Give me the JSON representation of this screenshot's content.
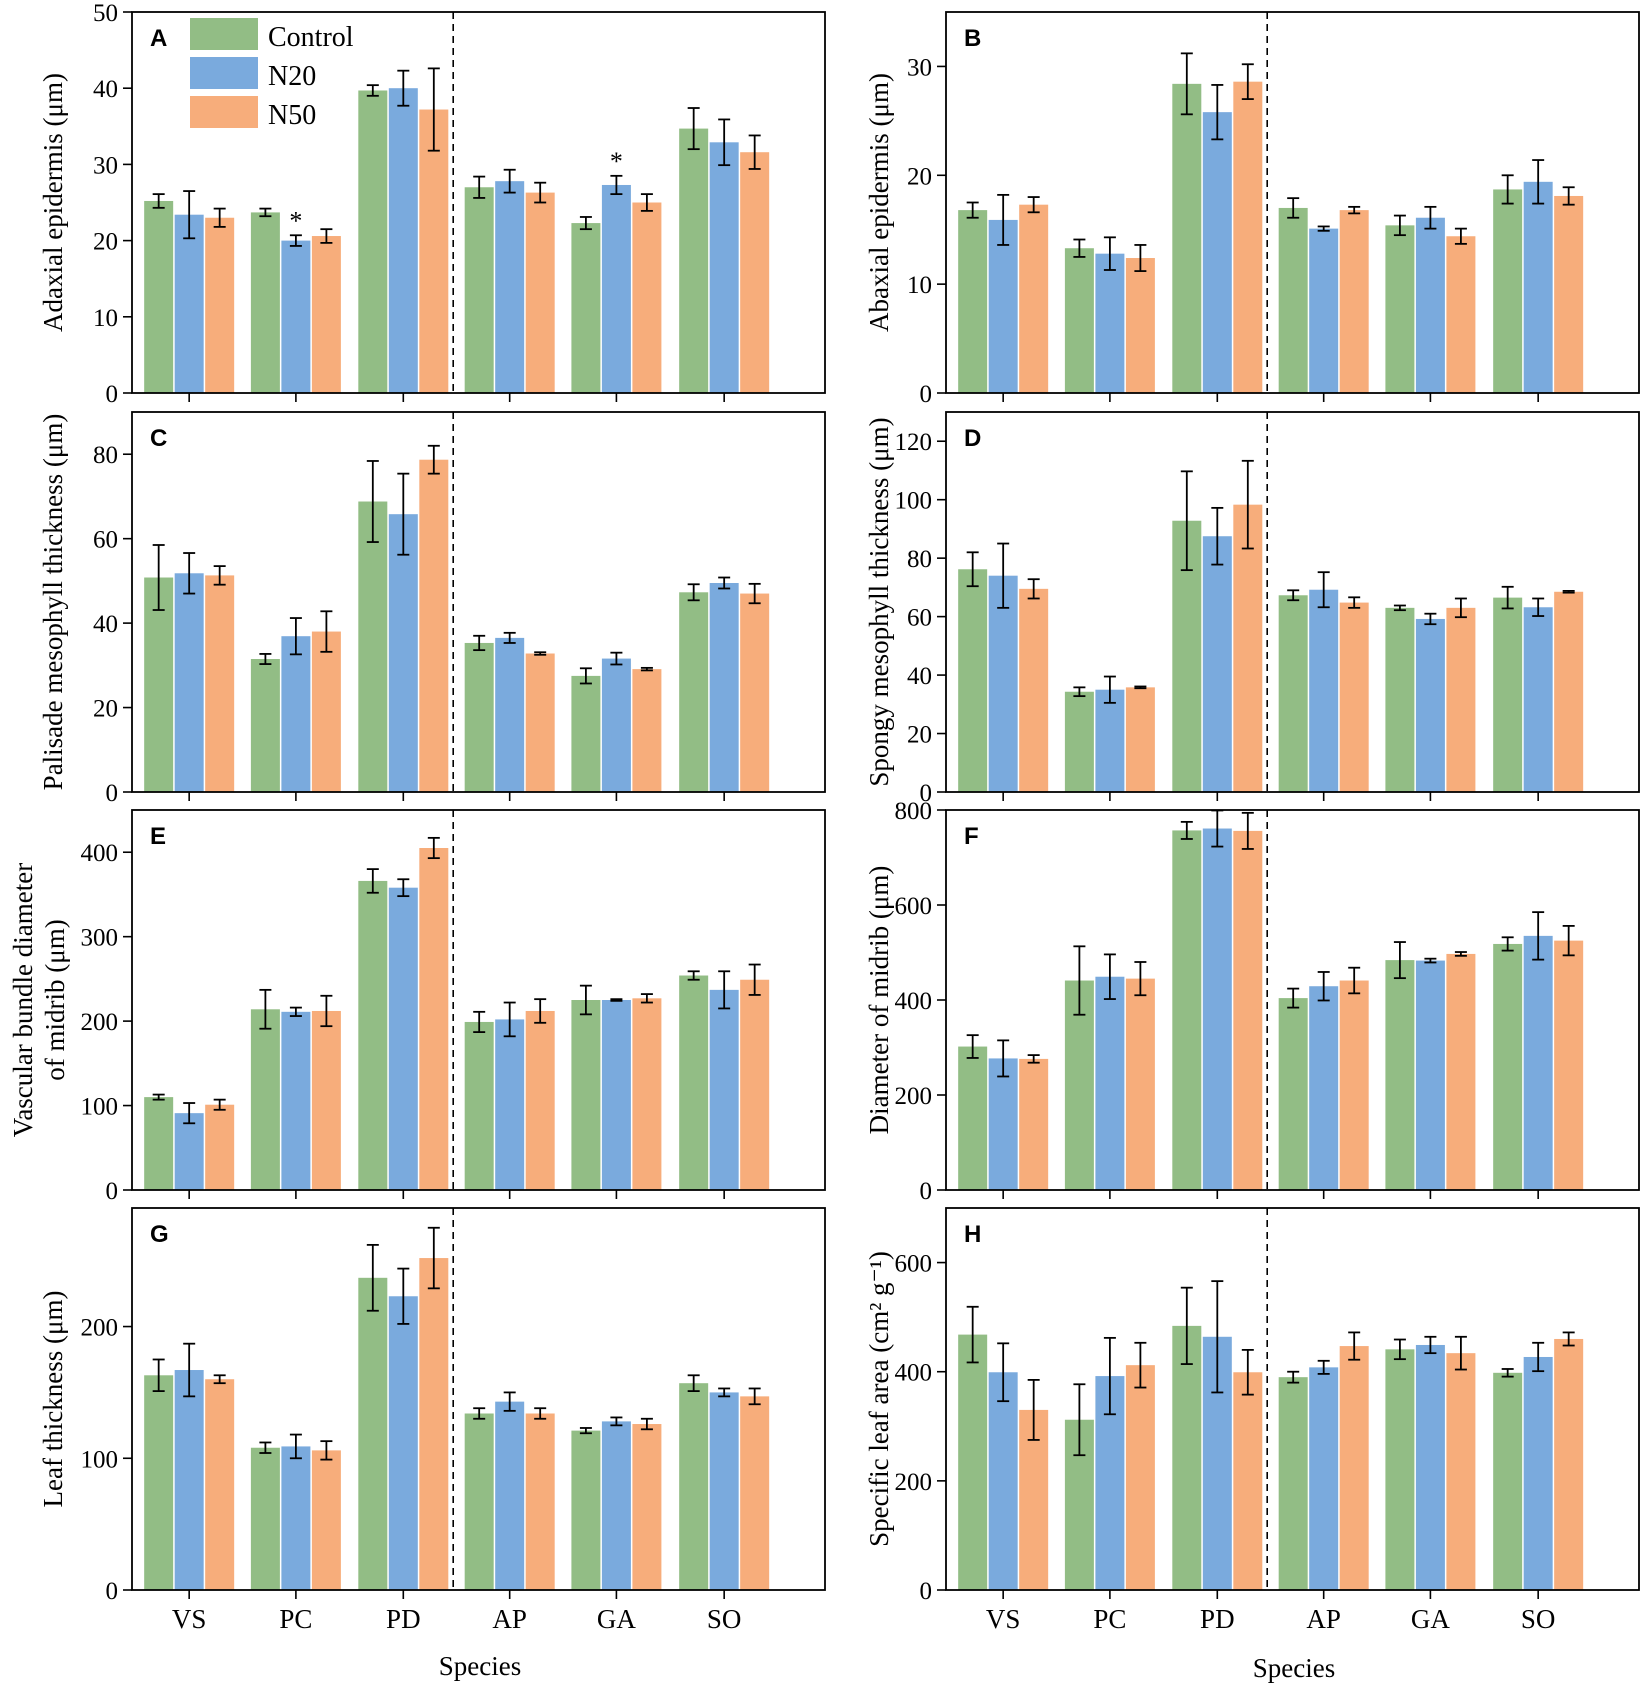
{
  "legend": [
    {
      "name": "Control",
      "color": "#92bd85"
    },
    {
      "name": "N20",
      "color": "#7aaadd"
    },
    {
      "name": "N50",
      "color": "#f7ad7b"
    }
  ],
  "x_axis_title": "Species",
  "chart_data": [
    {
      "type": "bar",
      "panel": "A",
      "ylabel": "Adaxial epidermis (μm)",
      "ylim": [
        0,
        50
      ],
      "yticks": [
        0,
        10,
        20,
        30,
        40,
        50
      ],
      "categories": [
        "VS",
        "PC",
        "PD",
        "AP",
        "GA",
        "SO"
      ],
      "series": [
        {
          "name": "Control",
          "values": [
            25.2,
            23.7,
            39.7,
            27.0,
            22.3,
            34.7
          ],
          "errors": [
            0.9,
            0.5,
            0.7,
            1.4,
            0.8,
            2.7
          ]
        },
        {
          "name": "N20",
          "values": [
            23.4,
            20.0,
            40.0,
            27.8,
            27.3,
            32.9
          ],
          "errors": [
            3.1,
            0.7,
            2.3,
            1.5,
            1.2,
            3.0
          ]
        },
        {
          "name": "N50",
          "values": [
            23.0,
            20.6,
            37.2,
            26.3,
            25.0,
            31.6
          ],
          "errors": [
            1.2,
            0.9,
            5.4,
            1.3,
            1.1,
            2.2
          ]
        }
      ],
      "annotations": [
        {
          "text": "*",
          "category": "PC",
          "series": "N20"
        },
        {
          "text": "*",
          "category": "GA",
          "series": "N20"
        }
      ]
    },
    {
      "type": "bar",
      "panel": "B",
      "ylabel": "Abaxial epidermis (μm)",
      "ylim": [
        0,
        35
      ],
      "yticks": [
        0,
        10,
        20,
        30
      ],
      "categories": [
        "VS",
        "PC",
        "PD",
        "AP",
        "GA",
        "SO"
      ],
      "series": [
        {
          "name": "Control",
          "values": [
            16.8,
            13.3,
            28.4,
            17.0,
            15.4,
            18.7
          ],
          "errors": [
            0.7,
            0.8,
            2.8,
            0.9,
            0.9,
            1.3
          ]
        },
        {
          "name": "N20",
          "values": [
            15.9,
            12.8,
            25.8,
            15.1,
            16.1,
            19.4
          ],
          "errors": [
            2.3,
            1.5,
            2.5,
            0.2,
            1.0,
            2.0
          ]
        },
        {
          "name": "N50",
          "values": [
            17.3,
            12.4,
            28.6,
            16.8,
            14.4,
            18.1
          ],
          "errors": [
            0.7,
            1.2,
            1.6,
            0.3,
            0.7,
            0.8
          ]
        }
      ],
      "annotations": []
    },
    {
      "type": "bar",
      "panel": "C",
      "ylabel": "Palisade mesophyll thickness (μm)",
      "ylim": [
        0,
        90
      ],
      "yticks": [
        0,
        20,
        40,
        60,
        80
      ],
      "categories": [
        "VS",
        "PC",
        "PD",
        "AP",
        "GA",
        "SO"
      ],
      "series": [
        {
          "name": "Control",
          "values": [
            50.8,
            31.5,
            68.8,
            35.3,
            27.5,
            47.3
          ],
          "errors": [
            7.7,
            1.2,
            9.6,
            1.7,
            1.8,
            1.9
          ]
        },
        {
          "name": "N20",
          "values": [
            51.8,
            36.9,
            65.8,
            36.5,
            31.6,
            49.5
          ],
          "errors": [
            4.8,
            4.3,
            9.6,
            1.2,
            1.4,
            1.3
          ]
        },
        {
          "name": "N50",
          "values": [
            51.3,
            38.0,
            78.7,
            32.8,
            29.1,
            47.0
          ],
          "errors": [
            2.2,
            4.8,
            3.3,
            0.3,
            0.3,
            2.3
          ]
        }
      ],
      "annotations": []
    },
    {
      "type": "bar",
      "panel": "D",
      "ylabel": "Spongy mesophyll thickness (μm)",
      "ylim": [
        0,
        130
      ],
      "yticks": [
        0,
        20,
        40,
        60,
        80,
        100,
        120
      ],
      "categories": [
        "VS",
        "PC",
        "PD",
        "AP",
        "GA",
        "SO"
      ],
      "series": [
        {
          "name": "Control",
          "values": [
            76.2,
            34.3,
            92.8,
            67.3,
            63.0,
            66.5
          ],
          "errors": [
            5.8,
            1.5,
            16.9,
            1.7,
            0.8,
            3.7
          ]
        },
        {
          "name": "N20",
          "values": [
            74.0,
            35.0,
            87.5,
            69.2,
            59.2,
            63.2
          ],
          "errors": [
            11.0,
            4.5,
            9.7,
            6.0,
            1.8,
            3.0
          ]
        },
        {
          "name": "N50",
          "values": [
            69.5,
            35.8,
            98.3,
            64.8,
            63.0,
            68.5
          ],
          "errors": [
            3.3,
            0.3,
            15.0,
            1.8,
            3.2,
            0.3
          ]
        }
      ],
      "annotations": []
    },
    {
      "type": "bar",
      "panel": "E",
      "ylabel": "Vascular bundle diameter of midrib (μm)",
      "ylim": [
        0,
        450
      ],
      "yticks": [
        0,
        100,
        200,
        300,
        400
      ],
      "categories": [
        "VS",
        "PC",
        "PD",
        "AP",
        "GA",
        "SO"
      ],
      "series": [
        {
          "name": "Control",
          "values": [
            110,
            214,
            366,
            199,
            225,
            254
          ],
          "errors": [
            3,
            23,
            14,
            12,
            17,
            5
          ]
        },
        {
          "name": "N20",
          "values": [
            91,
            211,
            358,
            202,
            225,
            237
          ],
          "errors": [
            12,
            5,
            10,
            20,
            1,
            22
          ]
        },
        {
          "name": "N50",
          "values": [
            101,
            212,
            405,
            212,
            227,
            249
          ],
          "errors": [
            6,
            18,
            12,
            14,
            5,
            18
          ]
        }
      ],
      "annotations": []
    },
    {
      "type": "bar",
      "panel": "F",
      "ylabel": "Diameter of midrib (μm)",
      "ylim": [
        0,
        800
      ],
      "yticks": [
        0,
        200,
        400,
        600,
        800
      ],
      "categories": [
        "VS",
        "PC",
        "PD",
        "AP",
        "GA",
        "SO"
      ],
      "series": [
        {
          "name": "Control",
          "values": [
            302,
            441,
            757,
            404,
            484,
            518
          ],
          "errors": [
            24,
            72,
            18,
            20,
            38,
            14
          ]
        },
        {
          "name": "N20",
          "values": [
            277,
            449,
            761,
            429,
            483,
            535
          ],
          "errors": [
            38,
            47,
            38,
            30,
            4,
            50
          ]
        },
        {
          "name": "N50",
          "values": [
            276,
            445,
            756,
            441,
            497,
            525
          ],
          "errors": [
            8,
            35,
            38,
            27,
            4,
            31
          ]
        }
      ],
      "annotations": []
    },
    {
      "type": "bar",
      "panel": "G",
      "ylabel": "Leaf thickness (μm)",
      "ylim": [
        0,
        290
      ],
      "yticks": [
        0,
        100,
        200
      ],
      "categories": [
        "VS",
        "PC",
        "PD",
        "AP",
        "GA",
        "SO"
      ],
      "series": [
        {
          "name": "Control",
          "values": [
            163,
            108,
            237,
            134,
            121,
            157
          ],
          "errors": [
            12,
            4,
            25,
            4,
            2,
            6
          ]
        },
        {
          "name": "N20",
          "values": [
            167,
            109,
            223,
            143,
            128,
            150
          ],
          "errors": [
            20,
            9,
            21,
            7,
            3,
            3
          ]
        },
        {
          "name": "N50",
          "values": [
            160,
            106,
            252,
            134,
            126,
            147
          ],
          "errors": [
            3,
            7,
            23,
            4,
            4,
            6
          ]
        }
      ],
      "annotations": []
    },
    {
      "type": "bar",
      "panel": "H",
      "ylabel": "Specific leaf area (cm² g⁻¹)",
      "ylim": [
        0,
        700
      ],
      "yticks": [
        0,
        200,
        400,
        600
      ],
      "categories": [
        "VS",
        "PC",
        "PD",
        "AP",
        "GA",
        "SO"
      ],
      "series": [
        {
          "name": "Control",
          "values": [
            468,
            312,
            484,
            390,
            441,
            398
          ],
          "errors": [
            51,
            65,
            70,
            10,
            18,
            7
          ]
        },
        {
          "name": "N20",
          "values": [
            399,
            392,
            464,
            408,
            449,
            427
          ],
          "errors": [
            53,
            70,
            102,
            12,
            15,
            26
          ]
        },
        {
          "name": "N50",
          "values": [
            330,
            412,
            399,
            447,
            434,
            460
          ],
          "errors": [
            55,
            41,
            41,
            25,
            30,
            12
          ]
        }
      ],
      "annotations": []
    }
  ]
}
